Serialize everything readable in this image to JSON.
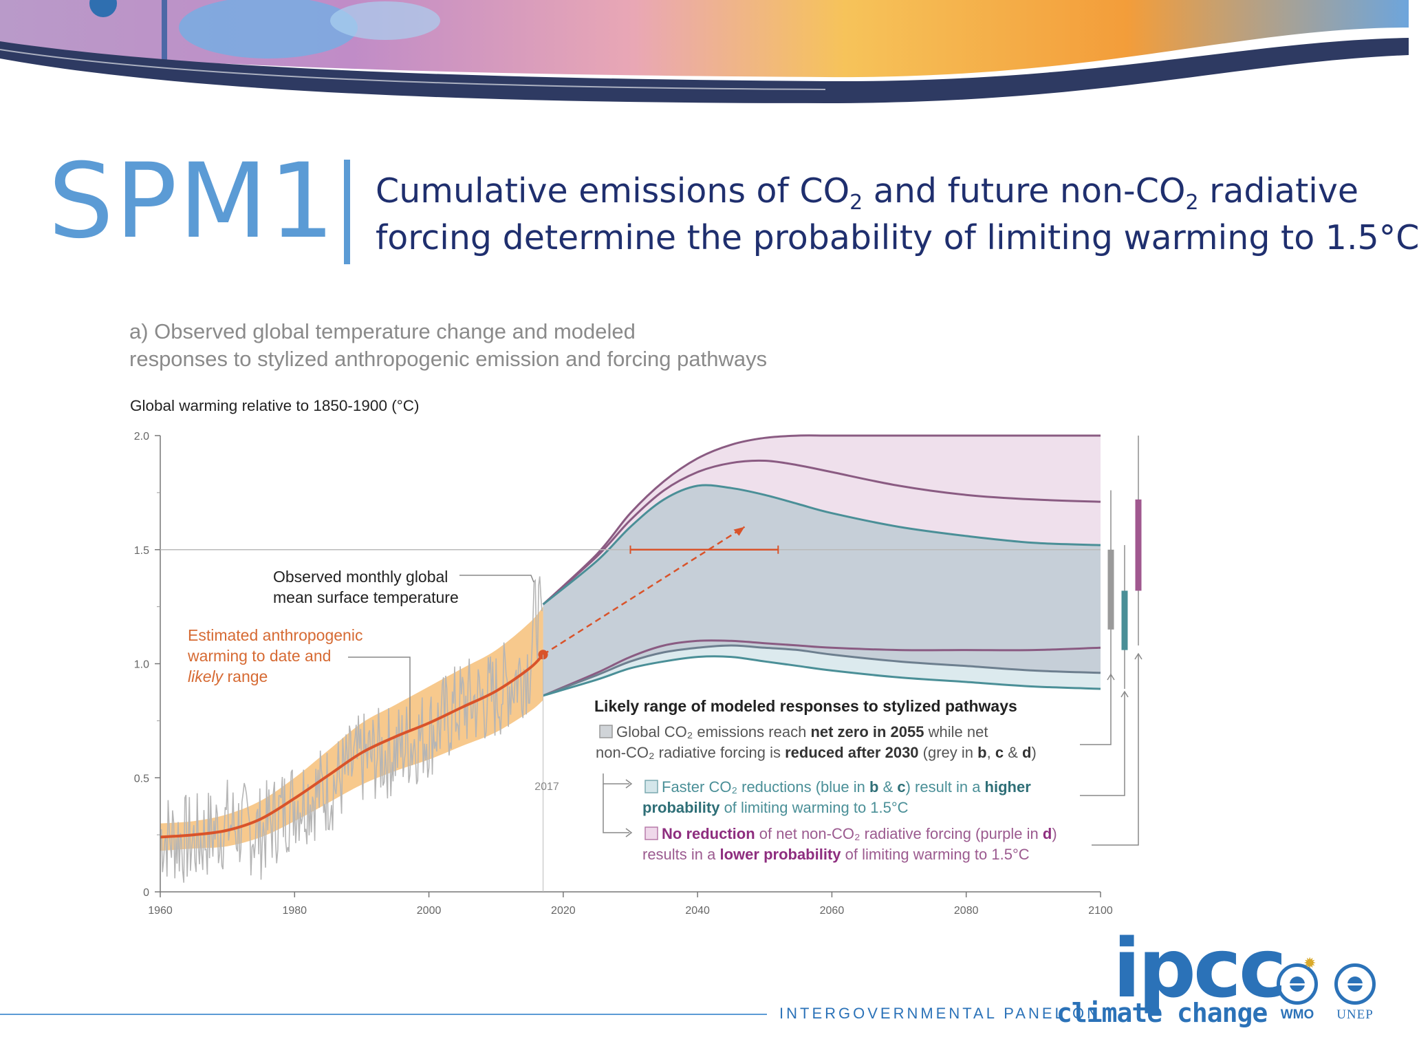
{
  "slide": {
    "badge": "SPM1",
    "headline": {
      "line1_a": "Cumulative emissions of CO",
      "line1_sub1": "2",
      "line1_b": " and future non-CO",
      "line1_sub2": "2",
      "line1_c": " radiative",
      "line2": "forcing determine the probability of limiting warming to 1.5°C"
    }
  },
  "chart_data": {
    "type": "line",
    "panel_title_line1": "a) Observed global temperature change and modeled",
    "panel_title_line2": "responses to stylized anthropogenic emission and forcing pathways",
    "ylabel": "Global warming relative to 1850-1900 (°C)",
    "xlim": [
      1960,
      2100
    ],
    "ylim": [
      0,
      2.0
    ],
    "x_ticks": [
      "1960",
      "1980",
      "2000",
      "2020",
      "2040",
      "2060",
      "2080",
      "2100"
    ],
    "y_ticks": [
      "0",
      "0.5",
      "1.0",
      "1.5",
      "2.0"
    ],
    "grid": false,
    "reference_line": 1.5,
    "marker_year_label": "2017",
    "annotations": {
      "observed_l1": "Observed monthly global",
      "observed_l2": "mean surface temperature",
      "estimated_l1": "Estimated anthropogenic",
      "estimated_l2": "warming to date and",
      "estimated_l3_italic": "likely",
      "estimated_l3_rest": " range"
    },
    "legend": {
      "title": "Likely range of modeled responses to stylized pathways",
      "grey_l1_a": "Global CO₂ emissions reach ",
      "grey_l1_b": "net zero in 2055",
      "grey_l1_c": " while net",
      "grey_l2_a": "non-CO₂ radiative forcing is ",
      "grey_l2_b": "reduced after 2030",
      "grey_l2_c": " (grey in ",
      "grey_l2_d": "b",
      "grey_l2_e": ", ",
      "grey_l2_f": "c",
      "grey_l2_g": " & ",
      "grey_l2_h": "d",
      "grey_l2_i": ")",
      "blue_l1_a": "Faster CO₂ reductions (blue in ",
      "blue_l1_b": "b",
      "blue_l1_c": " & ",
      "blue_l1_d": "c",
      "blue_l1_e": ") result in a ",
      "blue_l1_f": "higher",
      "blue_l2_a": "probability",
      "blue_l2_b": " of limiting warming to 1.5°C",
      "purple_l1_a": "No reduction",
      "purple_l1_b": " of net non-CO₂ radiative forcing (purple in ",
      "purple_l1_c": "d",
      "purple_l1_d": ")",
      "purple_l2_a": "results in a ",
      "purple_l2_b": "lower probability",
      "purple_l2_c": " of limiting warming to 1.5°C"
    },
    "series": [
      {
        "name": "Estimated anthropogenic warming to date and likely range",
        "color": "#d9532a",
        "band_color": "#f6c27e",
        "x": [
          1960,
          1965,
          1970,
          1975,
          1980,
          1985,
          1990,
          1995,
          2000,
          2005,
          2010,
          2015,
          2017
        ],
        "y": [
          0.24,
          0.25,
          0.27,
          0.32,
          0.41,
          0.51,
          0.61,
          0.68,
          0.74,
          0.81,
          0.88,
          0.98,
          1.04
        ],
        "lower": [
          0.18,
          0.19,
          0.2,
          0.24,
          0.31,
          0.39,
          0.47,
          0.53,
          0.58,
          0.64,
          0.7,
          0.79,
          0.84
        ],
        "upper": [
          0.3,
          0.31,
          0.34,
          0.4,
          0.5,
          0.62,
          0.74,
          0.82,
          0.9,
          0.98,
          1.06,
          1.18,
          1.25
        ]
      },
      {
        "name": "Observed monthly global mean surface temperature",
        "color": "#b5b5b5",
        "x": [
          1960,
          1965,
          1970,
          1975,
          1980,
          1985,
          1990,
          1995,
          2000,
          2005,
          2010,
          2015,
          2016,
          2017
        ],
        "y": [
          0.25,
          0.22,
          0.3,
          0.26,
          0.4,
          0.45,
          0.58,
          0.62,
          0.7,
          0.82,
          0.86,
          1.0,
          1.25,
          1.1
        ]
      },
      {
        "name": "Grey",
        "color": "#7b8fa1",
        "x": [
          2017,
          2025,
          2030,
          2035,
          2040,
          2045,
          2050,
          2055,
          2060,
          2070,
          2080,
          2090,
          2100
        ],
        "lower": [
          0.86,
          0.95,
          1.01,
          1.05,
          1.07,
          1.08,
          1.07,
          1.06,
          1.04,
          1.01,
          0.99,
          0.97,
          0.96
        ],
        "upper": [
          1.26,
          1.45,
          1.6,
          1.72,
          1.78,
          1.77,
          1.74,
          1.7,
          1.66,
          1.6,
          1.56,
          1.53,
          1.52
        ]
      },
      {
        "name": "Blue",
        "color": "#4a8f97",
        "x": [
          2017,
          2025,
          2030,
          2035,
          2040,
          2045,
          2050,
          2055,
          2060,
          2070,
          2080,
          2090,
          2100
        ],
        "lower": [
          0.86,
          0.93,
          0.98,
          1.01,
          1.03,
          1.03,
          1.01,
          0.99,
          0.97,
          0.94,
          0.92,
          0.9,
          0.89
        ],
        "upper": [
          1.26,
          1.45,
          1.6,
          1.72,
          1.78,
          1.77,
          1.74,
          1.7,
          1.66,
          1.6,
          1.56,
          1.53,
          1.52
        ]
      },
      {
        "name": "Purple",
        "color": "#8a5b82",
        "x": [
          2017,
          2025,
          2030,
          2035,
          2040,
          2045,
          2050,
          2055,
          2060,
          2070,
          2080,
          2090,
          2100
        ],
        "lower": [
          0.86,
          0.96,
          1.03,
          1.08,
          1.1,
          1.1,
          1.09,
          1.08,
          1.07,
          1.06,
          1.06,
          1.06,
          1.07
        ],
        "upper": [
          1.26,
          1.48,
          1.66,
          1.8,
          1.9,
          1.96,
          1.99,
          2.0,
          2.0,
          2.0,
          2.0,
          2.0,
          2.0
        ],
        "mid_upper": [
          1.26,
          1.47,
          1.63,
          1.76,
          1.84,
          1.88,
          1.89,
          1.87,
          1.84,
          1.78,
          1.74,
          1.72,
          1.71
        ]
      }
    ],
    "dashed_arrow": {
      "x": [
        2017,
        2047
      ],
      "y": [
        1.04,
        1.6
      ]
    },
    "range_whisker": {
      "y": 1.5,
      "x": [
        2030,
        2052
      ]
    },
    "right_bars": [
      {
        "name": "grey",
        "color": "#9a9a9a",
        "low": 1.15,
        "high": 1.5,
        "wl": 0.95,
        "wh": 1.76
      },
      {
        "name": "blue",
        "color": "#4a8f97",
        "low": 1.06,
        "high": 1.32,
        "wl": 0.89,
        "wh": 1.52
      },
      {
        "name": "purple",
        "color": "#a0588f",
        "low": 1.32,
        "high": 1.72,
        "wl": 1.08,
        "wh": 2.0
      }
    ]
  },
  "footer": {
    "logo": "ipcc",
    "org_name": "INTERGOVERNMENTAL PANEL ON",
    "org_name_2": "climate change",
    "wmo": "WMO",
    "unep": "UNEP"
  }
}
